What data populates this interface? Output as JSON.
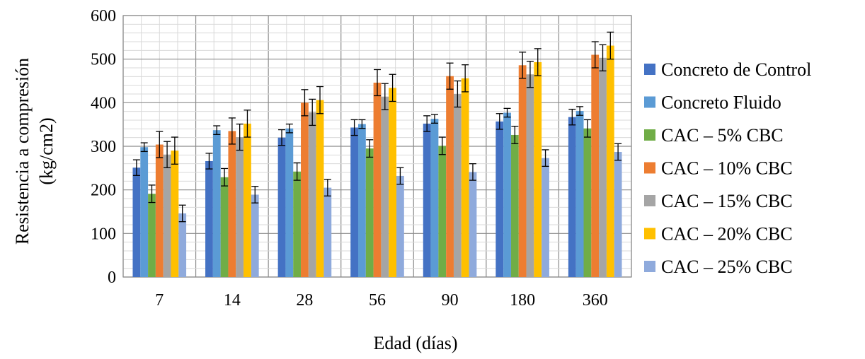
{
  "chart_data": {
    "type": "bar",
    "xlabel": "Edad (días)",
    "ylabel_lines": [
      "Resistencia a compresión",
      "(kg/cm2)"
    ],
    "ylim": [
      0,
      600
    ],
    "yticks": [
      0,
      100,
      200,
      300,
      400,
      500,
      600
    ],
    "grid": true,
    "error_bars": true,
    "legend_position": "right",
    "categories": [
      "7",
      "14",
      "28",
      "56",
      "90",
      "180",
      "360"
    ],
    "series": [
      {
        "name": "Concreto de Control",
        "color": "#4472C4",
        "values": [
          251,
          266,
          320,
          343,
          352,
          357,
          367
        ],
        "errors": [
          18,
          18,
          18,
          18,
          18,
          18,
          18
        ]
      },
      {
        "name": "Concreto Fluido",
        "color": "#5B9BD5",
        "values": [
          298,
          337,
          341,
          351,
          363,
          377,
          381
        ],
        "errors": [
          10,
          10,
          10,
          10,
          10,
          10,
          10
        ]
      },
      {
        "name": "CAC – 5% CBC",
        "color": "#70AD47",
        "values": [
          191,
          229,
          242,
          295,
          301,
          326,
          341
        ],
        "errors": [
          20,
          20,
          20,
          20,
          20,
          20,
          20
        ]
      },
      {
        "name": "CAC – 10% CBC",
        "color": "#ED7D31",
        "values": [
          304,
          335,
          400,
          446,
          461,
          486,
          510
        ],
        "errors": [
          30,
          30,
          30,
          30,
          30,
          30,
          30
        ]
      },
      {
        "name": "CAC – 15% CBC",
        "color": "#A5A5A5",
        "values": [
          281,
          321,
          378,
          414,
          420,
          465,
          503
        ],
        "errors": [
          30,
          30,
          30,
          30,
          30,
          30,
          30
        ]
      },
      {
        "name": "CAC – 20% CBC",
        "color": "#FFC000",
        "values": [
          290,
          352,
          406,
          434,
          456,
          493,
          531
        ],
        "errors": [
          31,
          31,
          31,
          31,
          31,
          31,
          31
        ]
      },
      {
        "name": "CAC – 25% CBC",
        "color": "#8FAADC",
        "values": [
          146,
          189,
          205,
          232,
          241,
          273,
          287
        ],
        "errors": [
          19,
          19,
          19,
          19,
          19,
          19,
          19
        ]
      }
    ]
  }
}
